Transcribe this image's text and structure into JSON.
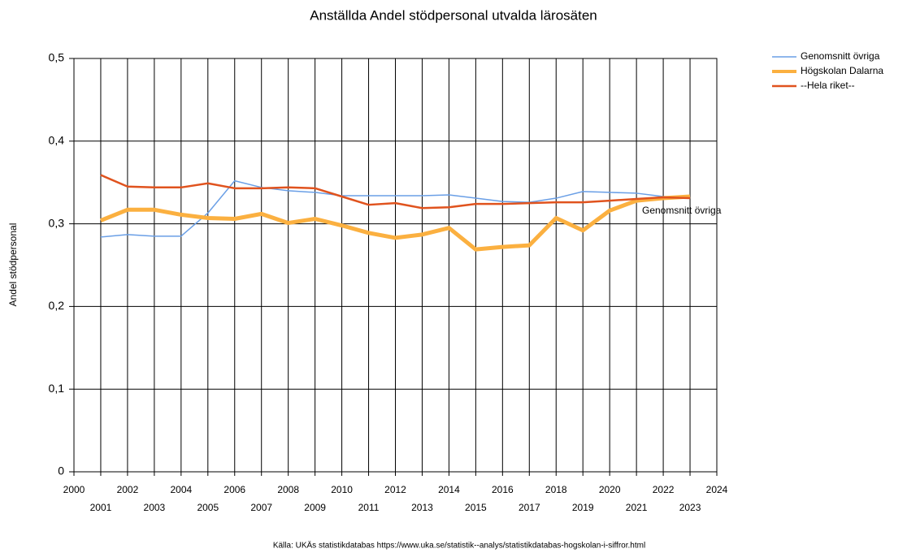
{
  "chart_data": {
    "type": "line",
    "title": "Anställda Andel stödpersonal utvalda lärosäten",
    "y_label": "Andel stödpersonal",
    "source": "Källa: UKÄs statistikdatabas https://www.uka.se/statistik--analys/statistikdatabas-hogskolan-i-siffror.html",
    "annotation": "Genomsnitt övriga",
    "x": [
      2001,
      2002,
      2003,
      2004,
      2005,
      2006,
      2007,
      2008,
      2009,
      2010,
      2011,
      2012,
      2013,
      2014,
      2015,
      2016,
      2017,
      2018,
      2019,
      2020,
      2021,
      2022,
      2023
    ],
    "series": [
      {
        "name": "Genomsnitt övriga",
        "color": "#6a9fe6",
        "width": 1.5,
        "values": [
          0.284,
          0.287,
          0.285,
          0.285,
          0.313,
          0.352,
          0.344,
          0.34,
          0.338,
          0.334,
          0.334,
          0.334,
          0.334,
          0.335,
          0.331,
          0.327,
          0.326,
          0.331,
          0.339,
          0.338,
          0.337,
          0.333,
          0.331
        ]
      },
      {
        "name": "Högskolan Dalarna",
        "color": "#fbb040",
        "width": 5,
        "values": [
          0.304,
          0.317,
          0.317,
          0.311,
          0.307,
          0.306,
          0.312,
          0.301,
          0.306,
          0.298,
          0.289,
          0.283,
          0.287,
          0.295,
          0.269,
          0.272,
          0.274,
          0.307,
          0.292,
          0.316,
          0.328,
          0.331,
          0.333
        ]
      },
      {
        "name": "--Hela riket--",
        "color": "#e0531e",
        "width": 2.5,
        "values": [
          0.359,
          0.345,
          0.344,
          0.344,
          0.349,
          0.343,
          0.343,
          0.344,
          0.343,
          0.333,
          0.323,
          0.325,
          0.319,
          0.32,
          0.324,
          0.324,
          0.325,
          0.326,
          0.326,
          0.328,
          0.33,
          0.332,
          0.331
        ]
      }
    ],
    "xlim": [
      2000,
      2024
    ],
    "xticks": [
      2000,
      2001,
      2002,
      2003,
      2004,
      2005,
      2006,
      2007,
      2008,
      2009,
      2010,
      2011,
      2012,
      2013,
      2014,
      2015,
      2016,
      2017,
      2018,
      2019,
      2020,
      2021,
      2022,
      2023,
      2024
    ],
    "ylim": [
      0,
      0.5
    ],
    "yticks": [
      0,
      {
        "value": 0.1,
        "label": "0,1"
      },
      {
        "value": 0.2,
        "label": "0,2"
      },
      {
        "value": 0.3,
        "label": "0,3"
      },
      {
        "value": 0.4,
        "label": "0,4"
      },
      {
        "value": 0.5,
        "label": "0,5"
      }
    ],
    "grid": true,
    "legend": "right"
  }
}
